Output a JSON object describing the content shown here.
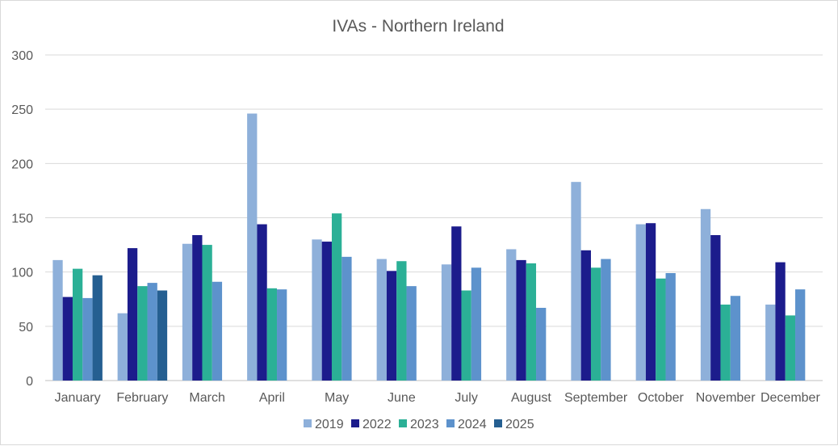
{
  "chart_data": {
    "type": "bar",
    "title": "IVAs - Northern Ireland",
    "xlabel": "",
    "ylabel": "",
    "ylim": [
      0,
      300
    ],
    "yticks": [
      0,
      50,
      100,
      150,
      200,
      250,
      300
    ],
    "grid": true,
    "legend_position": "bottom",
    "categories": [
      "January",
      "February",
      "March",
      "April",
      "May",
      "June",
      "July",
      "August",
      "September",
      "October",
      "November",
      "December"
    ],
    "series": [
      {
        "name": "2019",
        "color": "#8EB0DA",
        "values": [
          111,
          62,
          126,
          246,
          130,
          112,
          107,
          121,
          183,
          144,
          158,
          70
        ]
      },
      {
        "name": "2022",
        "color": "#1C1C8C",
        "values": [
          77,
          122,
          134,
          144,
          128,
          101,
          142,
          111,
          120,
          145,
          134,
          109
        ]
      },
      {
        "name": "2023",
        "color": "#2BB096",
        "values": [
          103,
          87,
          125,
          85,
          154,
          110,
          83,
          108,
          104,
          94,
          70,
          60
        ]
      },
      {
        "name": "2024",
        "color": "#5D92CC",
        "values": [
          76,
          90,
          91,
          84,
          114,
          87,
          104,
          67,
          112,
          99,
          78,
          84
        ]
      },
      {
        "name": "2025",
        "color": "#255F91",
        "values": [
          97,
          83,
          null,
          null,
          null,
          null,
          null,
          null,
          null,
          null,
          null,
          null
        ]
      }
    ]
  }
}
